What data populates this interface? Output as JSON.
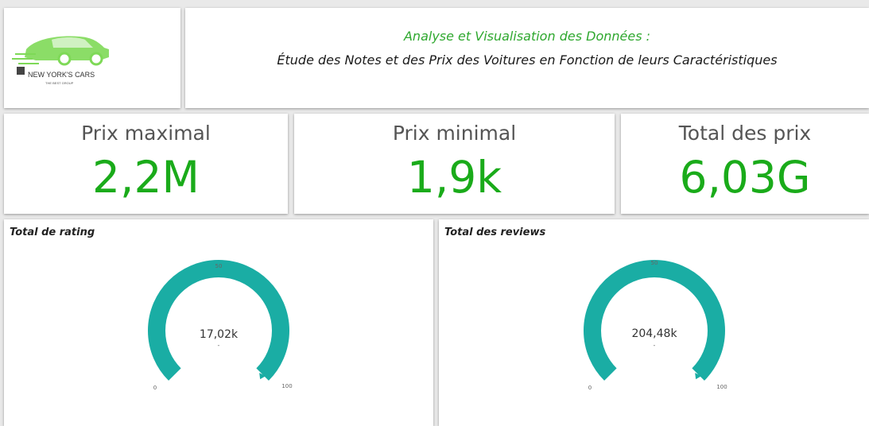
{
  "header": {
    "logo": {
      "brand": "NEW YORK'S CARS",
      "tagline": "THE BEST GROUP",
      "accent_color": "#7ed957"
    },
    "title_line1": "Analyse et Visualisation des Données :",
    "title_line2": "Étude des Notes et des Prix des Voitures en Fonction de leurs Caractéristiques"
  },
  "kpis": [
    {
      "label": "Prix maximal",
      "value": "2,2M"
    },
    {
      "label": "Prix minimal",
      "value": "1,9k"
    },
    {
      "label": "Total des prix",
      "value": "6,03G"
    }
  ],
  "gauges": [
    {
      "title": "Total de rating",
      "value_label": "17,02k",
      "sub_label": "-",
      "min_label": "0",
      "mid_label": "50",
      "max_label": "100",
      "fill_fraction": 1.0,
      "color": "#1aada4"
    },
    {
      "title": "Total des reviews",
      "value_label": "204,48k",
      "sub_label": "-",
      "min_label": "0",
      "mid_label": "50",
      "max_label": "100",
      "fill_fraction": 1.0,
      "color": "#1aada4"
    }
  ],
  "colors": {
    "kpi_value": "#1aab1a",
    "title_accent": "#2fa82f",
    "gauge": "#1aada4"
  }
}
